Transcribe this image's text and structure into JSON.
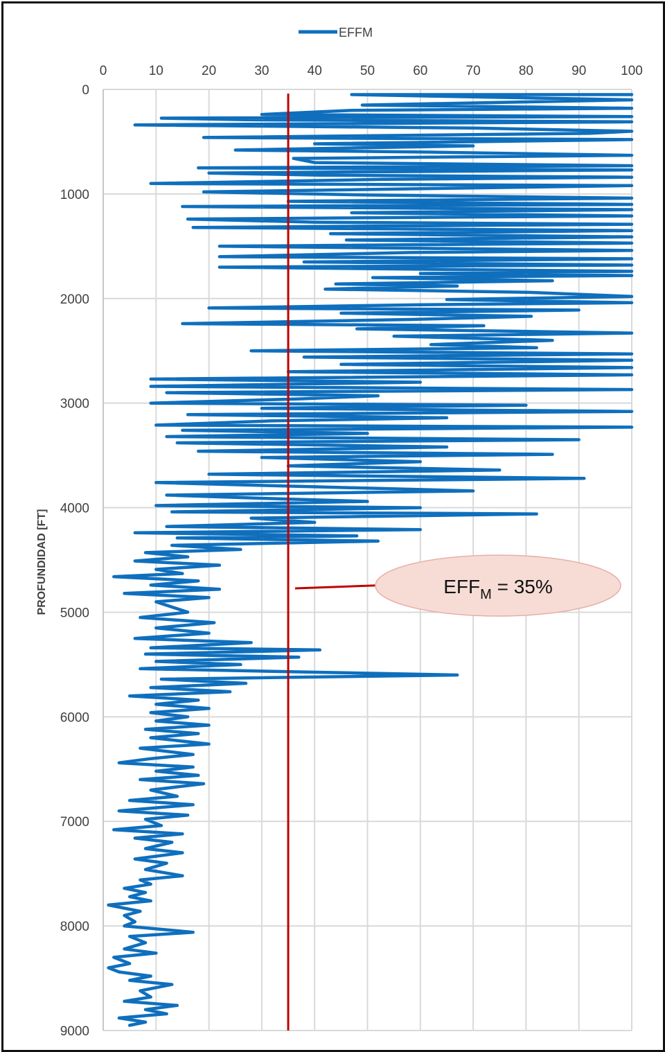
{
  "chart_data": {
    "type": "line",
    "title": "",
    "legend": {
      "position": "top-center",
      "entries": [
        "EFFM"
      ]
    },
    "series": [
      {
        "name": "EFFM",
        "color": "#0f6fbd",
        "points": [
          [
            100,
            50
          ],
          [
            47,
            50
          ],
          [
            100,
            100
          ],
          [
            49,
            150
          ],
          [
            100,
            180
          ],
          [
            47,
            200
          ],
          [
            30,
            240
          ],
          [
            100,
            260
          ],
          [
            11,
            275
          ],
          [
            27,
            290
          ],
          [
            100,
            310
          ],
          [
            6,
            340
          ],
          [
            70,
            370
          ],
          [
            100,
            400
          ],
          [
            92,
            420
          ],
          [
            19,
            460
          ],
          [
            100,
            480
          ],
          [
            40,
            520
          ],
          [
            70,
            540
          ],
          [
            25,
            580
          ],
          [
            62,
            600
          ],
          [
            100,
            630
          ],
          [
            36,
            660
          ],
          [
            40,
            700
          ],
          [
            100,
            730
          ],
          [
            18,
            750
          ],
          [
            100,
            770
          ],
          [
            20,
            800
          ],
          [
            41,
            820
          ],
          [
            100,
            840
          ],
          [
            53,
            860
          ],
          [
            9,
            900
          ],
          [
            100,
            920
          ],
          [
            19,
            980
          ],
          [
            50,
            1010
          ],
          [
            100,
            1040
          ],
          [
            35,
            1070
          ],
          [
            100,
            1100
          ],
          [
            15,
            1120
          ],
          [
            100,
            1150
          ],
          [
            47,
            1180
          ],
          [
            100,
            1210
          ],
          [
            16,
            1240
          ],
          [
            40,
            1270
          ],
          [
            100,
            1290
          ],
          [
            17,
            1320
          ],
          [
            100,
            1350
          ],
          [
            43,
            1380
          ],
          [
            100,
            1410
          ],
          [
            46,
            1440
          ],
          [
            100,
            1470
          ],
          [
            22,
            1500
          ],
          [
            100,
            1540
          ],
          [
            58,
            1560
          ],
          [
            22,
            1600
          ],
          [
            100,
            1620
          ],
          [
            38,
            1650
          ],
          [
            100,
            1680
          ],
          [
            22,
            1700
          ],
          [
            100,
            1740
          ],
          [
            60,
            1760
          ],
          [
            100,
            1780
          ],
          [
            51,
            1800
          ],
          [
            85,
            1830
          ],
          [
            44,
            1860
          ],
          [
            67,
            1880
          ],
          [
            42,
            1910
          ],
          [
            80,
            1940
          ],
          [
            100,
            1980
          ],
          [
            65,
            2010
          ],
          [
            100,
            2040
          ],
          [
            60,
            2060
          ],
          [
            20,
            2090
          ],
          [
            90,
            2110
          ],
          [
            45,
            2140
          ],
          [
            81,
            2170
          ],
          [
            58,
            2200
          ],
          [
            15,
            2240
          ],
          [
            72,
            2260
          ],
          [
            48,
            2290
          ],
          [
            100,
            2330
          ],
          [
            55,
            2360
          ],
          [
            85,
            2400
          ],
          [
            62,
            2440
          ],
          [
            82,
            2470
          ],
          [
            28,
            2500
          ],
          [
            100,
            2530
          ],
          [
            38,
            2560
          ],
          [
            100,
            2590
          ],
          [
            45,
            2630
          ],
          [
            100,
            2660
          ],
          [
            35,
            2700
          ],
          [
            100,
            2730
          ],
          [
            9,
            2770
          ],
          [
            60,
            2800
          ],
          [
            9,
            2840
          ],
          [
            100,
            2870
          ],
          [
            12,
            2900
          ],
          [
            52,
            2930
          ],
          [
            37,
            2960
          ],
          [
            9,
            3000
          ],
          [
            80,
            3020
          ],
          [
            30,
            3050
          ],
          [
            100,
            3080
          ],
          [
            16,
            3110
          ],
          [
            65,
            3140
          ],
          [
            32,
            3170
          ],
          [
            10,
            3210
          ],
          [
            100,
            3230
          ],
          [
            15,
            3260
          ],
          [
            50,
            3290
          ],
          [
            12,
            3320
          ],
          [
            90,
            3350
          ],
          [
            14,
            3380
          ],
          [
            65,
            3420
          ],
          [
            18,
            3460
          ],
          [
            85,
            3490
          ],
          [
            30,
            3520
          ],
          [
            60,
            3560
          ],
          [
            35,
            3600
          ],
          [
            75,
            3640
          ],
          [
            20,
            3680
          ],
          [
            91,
            3720
          ],
          [
            10,
            3760
          ],
          [
            40,
            3800
          ],
          [
            70,
            3840
          ],
          [
            12,
            3880
          ],
          [
            30,
            3910
          ],
          [
            50,
            3940
          ],
          [
            10,
            3980
          ],
          [
            60,
            4000
          ],
          [
            13,
            4040
          ],
          [
            82,
            4060
          ],
          [
            28,
            4100
          ],
          [
            40,
            4140
          ],
          [
            12,
            4180
          ],
          [
            60,
            4210
          ],
          [
            6,
            4240
          ],
          [
            48,
            4270
          ],
          [
            14,
            4290
          ],
          [
            52,
            4320
          ],
          [
            13,
            4360
          ],
          [
            26,
            4400
          ],
          [
            8,
            4430
          ],
          [
            16,
            4470
          ],
          [
            6,
            4510
          ],
          [
            22,
            4550
          ],
          [
            10,
            4590
          ],
          [
            15,
            4630
          ],
          [
            2,
            4660
          ],
          [
            18,
            4700
          ],
          [
            9,
            4740
          ],
          [
            22,
            4780
          ],
          [
            4,
            4820
          ],
          [
            20,
            4860
          ],
          [
            10,
            4900
          ],
          [
            16,
            5000
          ],
          [
            7,
            5050
          ],
          [
            21,
            5100
          ],
          [
            10,
            5150
          ],
          [
            20,
            5200
          ],
          [
            6,
            5250
          ],
          [
            28,
            5290
          ],
          [
            9,
            5340
          ],
          [
            41,
            5360
          ],
          [
            8,
            5400
          ],
          [
            37,
            5430
          ],
          [
            10,
            5470
          ],
          [
            26,
            5500
          ],
          [
            7,
            5540
          ],
          [
            67,
            5600
          ],
          [
            11,
            5640
          ],
          [
            27,
            5680
          ],
          [
            9,
            5720
          ],
          [
            24,
            5760
          ],
          [
            5,
            5800
          ],
          [
            18,
            5840
          ],
          [
            10,
            5880
          ],
          [
            20,
            5920
          ],
          [
            9,
            5960
          ],
          [
            16,
            6000
          ],
          [
            10,
            6040
          ],
          [
            20,
            6080
          ],
          [
            8,
            6120
          ],
          [
            18,
            6160
          ],
          [
            9,
            6200
          ],
          [
            20,
            6260
          ],
          [
            7,
            6300
          ],
          [
            17,
            6360
          ],
          [
            9,
            6400
          ],
          [
            3,
            6440
          ],
          [
            17,
            6480
          ],
          [
            10,
            6520
          ],
          [
            18,
            6560
          ],
          [
            7,
            6600
          ],
          [
            19,
            6640
          ],
          [
            9,
            6700
          ],
          [
            14,
            6760
          ],
          [
            5,
            6800
          ],
          [
            17,
            6840
          ],
          [
            3,
            6900
          ],
          [
            16,
            6940
          ],
          [
            8,
            6980
          ],
          [
            11,
            7040
          ],
          [
            2,
            7080
          ],
          [
            15,
            7120
          ],
          [
            6,
            7160
          ],
          [
            13,
            7200
          ],
          [
            8,
            7260
          ],
          [
            15,
            7300
          ],
          [
            6,
            7360
          ],
          [
            12,
            7400
          ],
          [
            8,
            7460
          ],
          [
            15,
            7520
          ],
          [
            7,
            7560
          ],
          [
            9,
            7600
          ],
          [
            4,
            7640
          ],
          [
            8,
            7680
          ],
          [
            5,
            7720
          ],
          [
            9,
            7760
          ],
          [
            1,
            7800
          ],
          [
            7,
            7860
          ],
          [
            4,
            7900
          ],
          [
            6,
            7960
          ],
          [
            4,
            8000
          ],
          [
            17,
            8060
          ],
          [
            5,
            8100
          ],
          [
            8,
            8160
          ],
          [
            4,
            8220
          ],
          [
            10,
            8260
          ],
          [
            2,
            8300
          ],
          [
            5,
            8360
          ],
          [
            1,
            8400
          ],
          [
            3,
            8440
          ],
          [
            9,
            8480
          ],
          [
            5,
            8520
          ],
          [
            13,
            8560
          ],
          [
            7,
            8620
          ],
          [
            9,
            8680
          ],
          [
            4,
            8720
          ],
          [
            14,
            8760
          ],
          [
            8,
            8800
          ],
          [
            12,
            8840
          ],
          [
            3,
            8880
          ],
          [
            8,
            8920
          ],
          [
            5,
            8950
          ]
        ]
      }
    ],
    "x_axis": {
      "position": "top",
      "range": [
        0,
        100
      ],
      "ticks": [
        "0",
        "10",
        "20",
        "30",
        "40",
        "50",
        "60",
        "70",
        "80",
        "90",
        "100"
      ],
      "label": ""
    },
    "y_axis": {
      "label": "PROFUNDIDAD [FT]",
      "range": [
        0,
        9000
      ],
      "inverted": true,
      "ticks": [
        "0",
        "1000",
        "2000",
        "3000",
        "4000",
        "5000",
        "6000",
        "7000",
        "8000",
        "9000"
      ]
    },
    "grid": true,
    "reference_line": {
      "x": 35,
      "color": "#c00000"
    },
    "annotation": {
      "text_main": "EFF",
      "text_sub": "M",
      "text_rest": " = 35%",
      "fill": "#f6dcd5",
      "stroke": "#e6b0a8",
      "arrow_color": "#c00000"
    }
  }
}
